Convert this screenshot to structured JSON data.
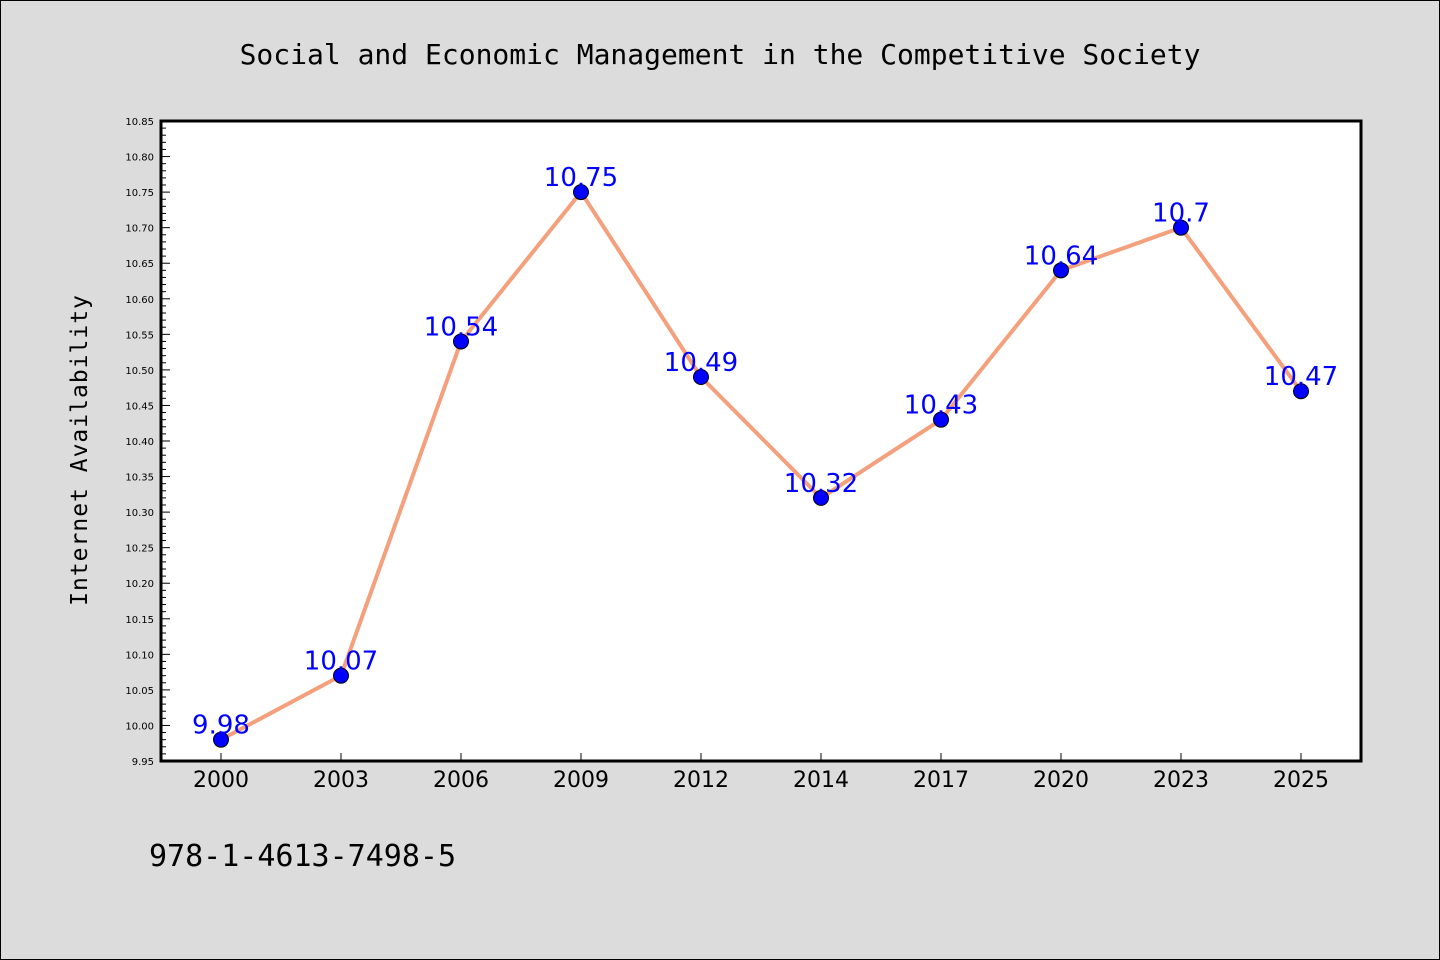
{
  "chart_data": {
    "type": "line",
    "title": "Social and Economic Management in the Competitive Society",
    "ylabel": "Internet Availability",
    "xlabel": "",
    "categories": [
      "2000",
      "2003",
      "2006",
      "2009",
      "2012",
      "2014",
      "2017",
      "2020",
      "2023",
      "2025"
    ],
    "values": [
      9.98,
      10.07,
      10.54,
      10.75,
      10.49,
      10.32,
      10.43,
      10.64,
      10.7,
      10.47
    ],
    "data_labels": [
      "9.98",
      "10.07",
      "10.54",
      "10.75",
      "10.49",
      "10.32",
      "10.43",
      "10.64",
      "10.7",
      "10.47"
    ],
    "yticks": [
      "9.95",
      "10.00",
      "10.05",
      "10.10",
      "10.15",
      "10.20",
      "10.25",
      "10.30",
      "10.35",
      "10.40",
      "10.45",
      "10.50",
      "10.55",
      "10.60",
      "10.65",
      "10.70",
      "10.75",
      "10.80",
      "10.85"
    ],
    "ylim": [
      9.95,
      10.85
    ],
    "grid": false,
    "legend": "none",
    "line_color": "#f4a07c",
    "marker_color": "#0000ff",
    "label_color": "#0000ff"
  },
  "footer_text": "978-1-4613-7498-5"
}
